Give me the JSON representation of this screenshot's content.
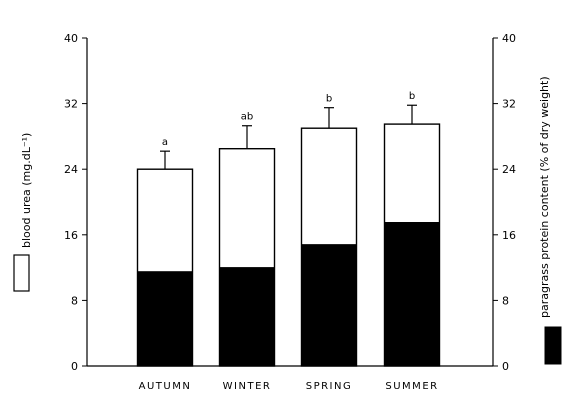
{
  "chart_data": {
    "type": "bar",
    "categories": [
      "AUTUMN",
      "WINTER",
      "SPRING",
      "SUMMER"
    ],
    "series": [
      {
        "name": "blood urea (mg.dL⁻¹)",
        "values": [
          24.0,
          26.5,
          29.0,
          29.5
        ],
        "errors": [
          2.2,
          2.8,
          2.5,
          2.3
        ],
        "color": "#ffffff"
      },
      {
        "name": "paragrass protein content (% of dry weight)",
        "values": [
          11.5,
          12.0,
          14.8,
          17.5
        ],
        "color": "#000000"
      }
    ],
    "significance_labels": [
      "a",
      "ab",
      "b",
      "b"
    ],
    "ylabel_left": "blood urea (mg.dL⁻¹)",
    "ylabel_right": "paragrass protein content (% of dry weight)",
    "ylim": [
      0,
      40
    ],
    "yticks": [
      0,
      8,
      16,
      24,
      32,
      40
    ],
    "right_ylim": [
      0,
      40
    ],
    "right_yticks": [
      0,
      8,
      16,
      24,
      32,
      40
    ],
    "legend": "left side and right side, beside axis titles",
    "grid": false
  }
}
